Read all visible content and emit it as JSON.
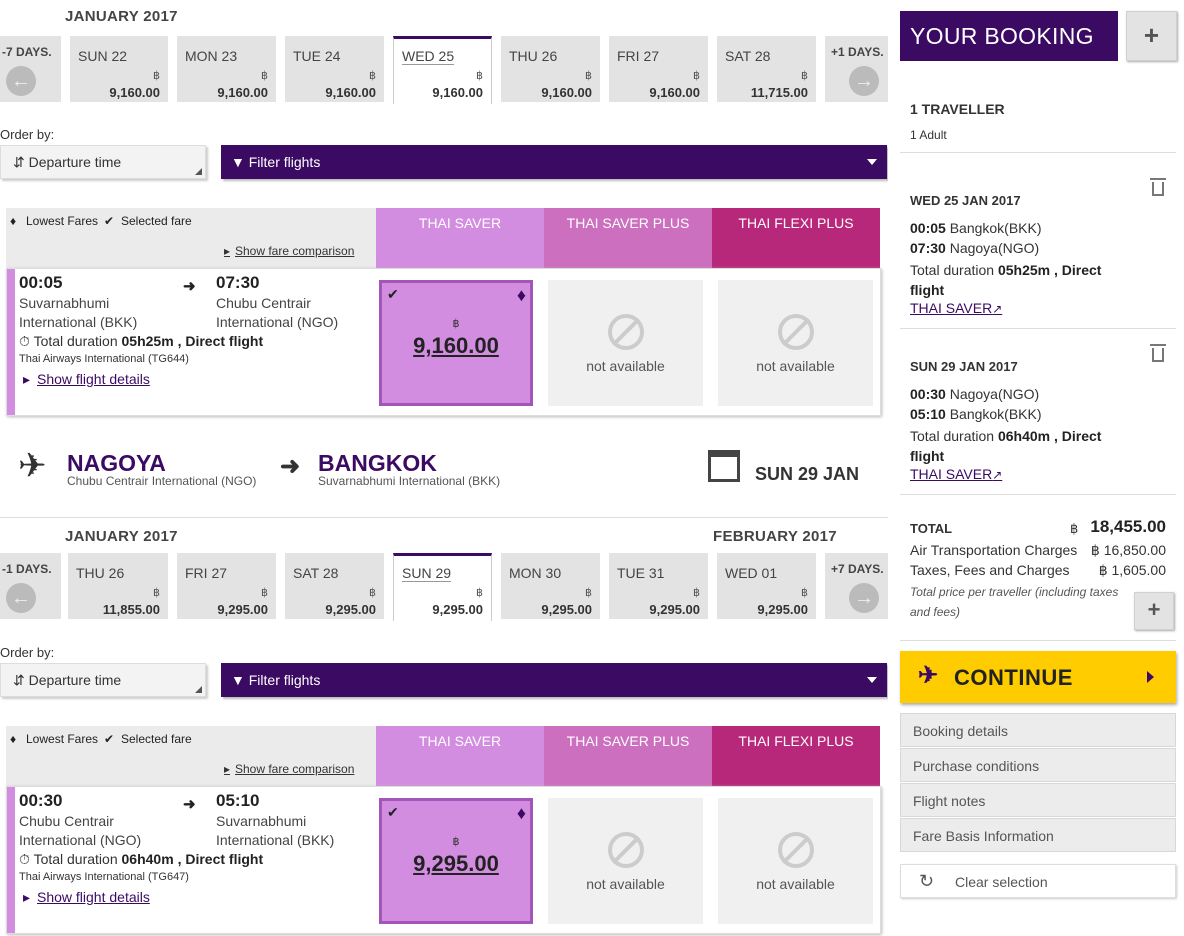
{
  "outbound": {
    "month_label": "JANUARY 2017",
    "prev_label": "-7 DAYS.",
    "next_label": "+1 DAYS.",
    "dates": [
      {
        "day": "SUN 22",
        "currency": "฿",
        "price": "9,160.00"
      },
      {
        "day": "MON 23",
        "currency": "฿",
        "price": "9,160.00"
      },
      {
        "day": "TUE 24",
        "currency": "฿",
        "price": "9,160.00"
      },
      {
        "day": "WED 25",
        "currency": "฿",
        "price": "9,160.00",
        "selected": true
      },
      {
        "day": "THU 26",
        "currency": "฿",
        "price": "9,160.00"
      },
      {
        "day": "FRI 27",
        "currency": "฿",
        "price": "9,160.00"
      },
      {
        "day": "SAT 28",
        "currency": "฿",
        "price": "11,715.00"
      }
    ],
    "order_label": "Order by:",
    "sort_value": "Departure time",
    "filter_label": "Filter flights",
    "legend_lowest": "Lowest Fares",
    "legend_selected": "Selected fare",
    "compare_label": "Show fare comparison",
    "fares": [
      "THAI SAVER",
      "THAI SAVER PLUS",
      "THAI FLEXI PLUS"
    ],
    "flight": {
      "dep_time": "00:05",
      "dep_airport_1": "Suvarnabhumi",
      "dep_airport_2": "International (BKK)",
      "arr_time": "07:30",
      "arr_airport_1": "Chubu Centrair",
      "arr_airport_2": "International (NGO)",
      "duration_prefix": "Total duration",
      "duration": "05h25m",
      "direct": ", Direct flight",
      "airline": "Thai Airways International (TG644)",
      "details_label": "Show flight details",
      "currency": "฿",
      "price": "9,160.00",
      "na1": "not available",
      "na2": "not available"
    }
  },
  "route": {
    "from_city": "NAGOYA",
    "from_airport": "Chubu Centrair International (NGO)",
    "to_city": "BANGKOK",
    "to_airport": "Suvarnabhumi International (BKK)",
    "date": "SUN 29 JAN"
  },
  "inbound": {
    "month_label": "JANUARY 2017",
    "month_label_2": "FEBRUARY 2017",
    "prev_label": "-1 DAYS.",
    "next_label": "+7 DAYS.",
    "dates": [
      {
        "day": "THU 26",
        "currency": "฿",
        "price": "11,855.00"
      },
      {
        "day": "FRI 27",
        "currency": "฿",
        "price": "9,295.00"
      },
      {
        "day": "SAT 28",
        "currency": "฿",
        "price": "9,295.00"
      },
      {
        "day": "SUN 29",
        "currency": "฿",
        "price": "9,295.00",
        "selected": true
      },
      {
        "day": "MON 30",
        "currency": "฿",
        "price": "9,295.00"
      },
      {
        "day": "TUE 31",
        "currency": "฿",
        "price": "9,295.00"
      },
      {
        "day": "WED 01",
        "currency": "฿",
        "price": "9,295.00"
      }
    ],
    "order_label": "Order by:",
    "sort_value": "Departure time",
    "filter_label": "Filter flights",
    "legend_lowest": "Lowest Fares",
    "legend_selected": "Selected fare",
    "compare_label": "Show fare comparison",
    "fares": [
      "THAI SAVER",
      "THAI SAVER PLUS",
      "THAI FLEXI PLUS"
    ],
    "flight": {
      "dep_time": "00:30",
      "dep_airport_1": "Chubu Centrair",
      "dep_airport_2": "International (NGO)",
      "arr_time": "05:10",
      "arr_airport_1": "Suvarnabhumi",
      "arr_airport_2": "International (BKK)",
      "duration_prefix": "Total duration",
      "duration": "06h40m",
      "direct": ", Direct flight",
      "airline": "Thai Airways International (TG647)",
      "details_label": "Show flight details",
      "currency": "฿",
      "price": "9,295.00",
      "na1": "not available",
      "na2": "not available"
    }
  },
  "booking": {
    "title": "YOUR BOOKING",
    "plus": "+",
    "travellers": "1 TRAVELLER",
    "adults": "1 Adult",
    "leg1": {
      "date": "WED 25 JAN 2017",
      "dep_time": "00:05",
      "dep_place": "Bangkok(BKK)",
      "arr_time": "07:30",
      "arr_place": "Nagoya(NGO)",
      "duration_prefix": "Total duration",
      "duration": "05h25m , Direct",
      "duration_2": "flight",
      "fare": "THAI SAVER"
    },
    "leg2": {
      "date": "SUN 29 JAN 2017",
      "dep_time": "00:30",
      "dep_place": "Nagoya(NGO)",
      "arr_time": "05:10",
      "arr_place": "Bangkok(BKK)",
      "duration_prefix": "Total duration",
      "duration": "06h40m , Direct",
      "duration_2": "flight",
      "fare": "THAI SAVER"
    },
    "total_label": "TOTAL",
    "total_currency": "฿",
    "total": "18,455.00",
    "air_label": "Air Transportation Charges",
    "air_value": "฿ 16,850.00",
    "tax_label": "Taxes, Fees and Charges",
    "tax_value": "฿ 1,605.00",
    "note": "Total price per traveller (including taxes and fees)",
    "continue_label": "CONTINUE",
    "menu": [
      "Booking details",
      "Purchase conditions",
      "Flight notes",
      "Fare Basis Information"
    ],
    "clear_label": "Clear selection"
  },
  "colors": {
    "brand": "#3b0a63",
    "saver": "#d38de0",
    "saver_plus": "#cc6fbf",
    "flexi": "#b8287a",
    "continue": "#ffcc00"
  }
}
